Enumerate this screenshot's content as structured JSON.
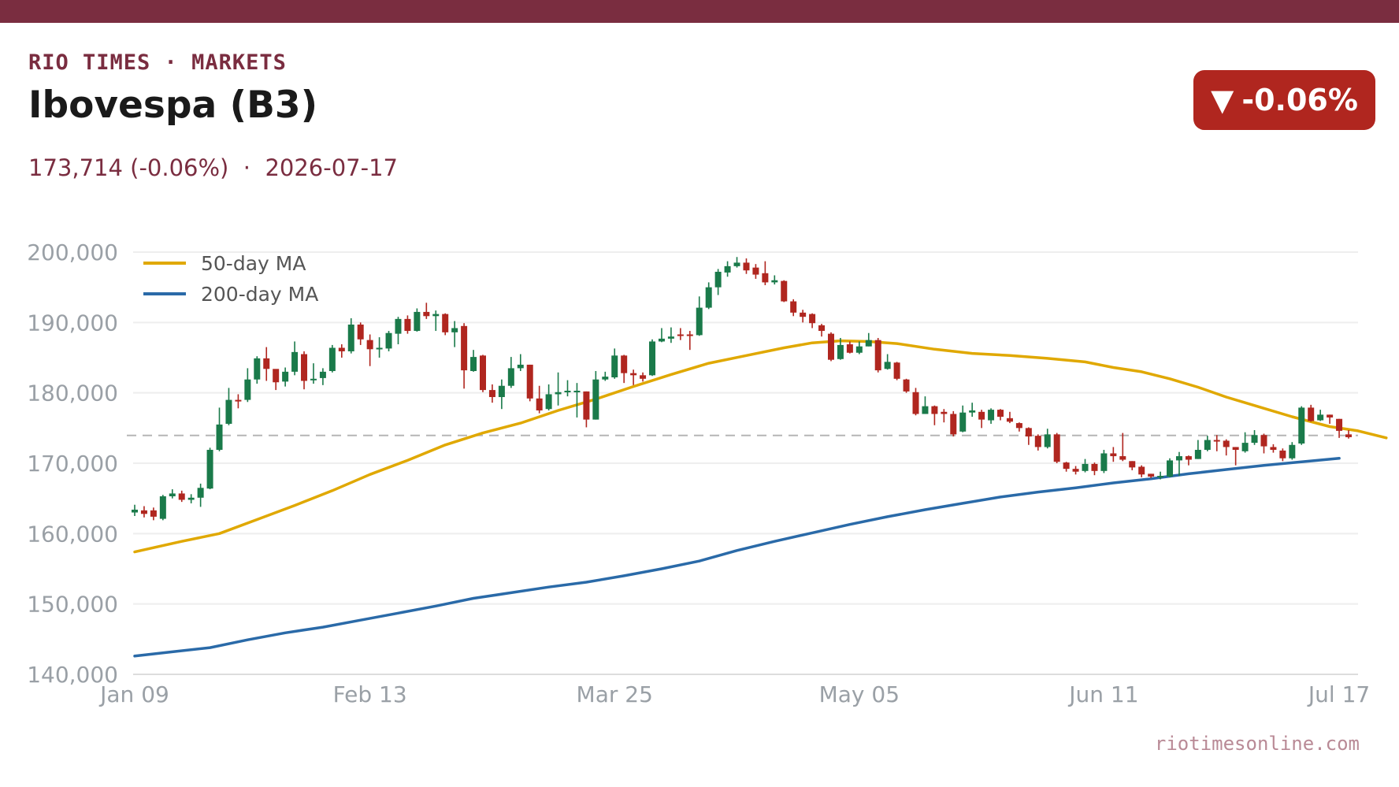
{
  "brand": "RIO TIMES · MARKETS",
  "title": "Ibovespa (B3)",
  "subtitle": {
    "price": "173,714 (-0.06%)",
    "separator": "  ·  ",
    "date": "2026-07-17"
  },
  "badge": {
    "arrow": "▼",
    "text": "-0.06%",
    "color": "#b0261f"
  },
  "footer": "riotimesonline.com",
  "colors": {
    "accent": "#7a2d40",
    "up": "#1a7a4a",
    "down": "#b0261f",
    "ma50": "#e0a800",
    "ma200": "#2a6aa8",
    "reference": "#b5b5b5"
  },
  "chart_data": {
    "type": "candlestick",
    "ylim": [
      140000,
      200000
    ],
    "yticks": [
      200000,
      190000,
      180000,
      170000,
      160000,
      150000,
      140000
    ],
    "ytick_labels": [
      "200,000",
      "190,000",
      "180,000",
      "170,000",
      "160,000",
      "150,000",
      "140,000"
    ],
    "xticks": [
      0,
      25,
      51,
      77,
      103,
      128
    ],
    "xtick_labels": [
      "Jan 09",
      "Feb 13",
      "Mar 25",
      "May 05",
      "Jun 11",
      "Jul 17"
    ],
    "reference_line": 173950,
    "grid": true,
    "legend_position": "top-left",
    "legend": [
      {
        "name": "50-day MA",
        "color": "#e0a800"
      },
      {
        "name": "200-day MA",
        "color": "#2a6aa8"
      }
    ],
    "candles": [
      [
        163000,
        163400,
        164100,
        162500
      ],
      [
        163300,
        162800,
        163900,
        162300
      ],
      [
        163300,
        162400,
        163700,
        161900
      ],
      [
        162100,
        165300,
        165500,
        161900
      ],
      [
        165300,
        165700,
        166300,
        165000
      ],
      [
        165700,
        164800,
        166100,
        164500
      ],
      [
        164800,
        165100,
        165600,
        164300
      ],
      [
        165100,
        166500,
        167100,
        163800
      ],
      [
        166400,
        171900,
        172200,
        166300
      ],
      [
        171900,
        175500,
        177900,
        171700
      ],
      [
        175600,
        179000,
        180700,
        175400
      ],
      [
        179000,
        178800,
        179800,
        177800
      ],
      [
        179000,
        181900,
        183500,
        178700
      ],
      [
        181900,
        184900,
        185200,
        181300
      ],
      [
        184900,
        183400,
        186500,
        181700
      ],
      [
        183400,
        181500,
        182800,
        180400
      ],
      [
        181600,
        183000,
        183600,
        180900
      ],
      [
        183000,
        185800,
        187300,
        182500
      ],
      [
        185500,
        181700,
        185900,
        180500
      ],
      [
        181800,
        182000,
        184200,
        181300
      ],
      [
        182100,
        183000,
        183500,
        181100
      ],
      [
        183100,
        186400,
        186800,
        182900
      ],
      [
        186400,
        185900,
        186900,
        185000
      ],
      [
        185900,
        189700,
        190600,
        185600
      ],
      [
        189700,
        187600,
        190000,
        186800
      ],
      [
        187500,
        186200,
        188300,
        183800
      ],
      [
        186200,
        186400,
        187900,
        185000
      ],
      [
        186300,
        188500,
        188800,
        185900
      ],
      [
        188400,
        190500,
        190800,
        186900
      ],
      [
        190500,
        188800,
        191000,
        188400
      ],
      [
        188800,
        191500,
        192000,
        188700
      ],
      [
        191500,
        190900,
        192800,
        190500
      ],
      [
        190900,
        191200,
        191700,
        188800
      ],
      [
        191200,
        188600,
        191300,
        188200
      ],
      [
        188600,
        189200,
        190200,
        186500
      ],
      [
        189500,
        183200,
        189900,
        180600
      ],
      [
        183100,
        185100,
        186100,
        183000
      ],
      [
        185300,
        180400,
        185400,
        180100
      ],
      [
        180400,
        179400,
        181200,
        178600
      ],
      [
        179400,
        181000,
        181900,
        177700
      ],
      [
        181000,
        183500,
        185100,
        180700
      ],
      [
        183500,
        184000,
        185500,
        183100
      ],
      [
        184000,
        179200,
        184000,
        178800
      ],
      [
        179200,
        177500,
        181000,
        177100
      ],
      [
        177700,
        179800,
        181200,
        177500
      ],
      [
        179800,
        180100,
        182900,
        178200
      ],
      [
        180200,
        180300,
        181800,
        179500
      ],
      [
        180200,
        180300,
        181400,
        176500
      ],
      [
        180200,
        176200,
        180200,
        175100
      ],
      [
        176200,
        181900,
        183100,
        176200
      ],
      [
        181900,
        182300,
        183000,
        181700
      ],
      [
        182200,
        185300,
        186300,
        182000
      ],
      [
        185300,
        182800,
        185400,
        181400
      ],
      [
        182800,
        182500,
        183300,
        181100
      ],
      [
        182500,
        182000,
        182900,
        181600
      ],
      [
        182500,
        187300,
        187600,
        182400
      ],
      [
        187300,
        187700,
        189200,
        187200
      ],
      [
        187700,
        188000,
        189300,
        187100
      ],
      [
        188300,
        188100,
        189200,
        187500
      ],
      [
        188300,
        188200,
        188800,
        186100
      ],
      [
        188200,
        192100,
        193700,
        188100
      ],
      [
        192100,
        195000,
        195700,
        191900
      ],
      [
        195000,
        197200,
        197600,
        193900
      ],
      [
        197100,
        198000,
        198700,
        196500
      ],
      [
        198000,
        198500,
        199300,
        197800
      ],
      [
        198500,
        197400,
        199100,
        196900
      ],
      [
        197800,
        196800,
        198300,
        196200
      ],
      [
        197000,
        195700,
        198700,
        195300
      ],
      [
        195700,
        196000,
        196700,
        195400
      ],
      [
        195900,
        193000,
        196000,
        192900
      ],
      [
        193000,
        191400,
        193300,
        190900
      ],
      [
        191400,
        190800,
        191800,
        190000
      ],
      [
        191200,
        189900,
        191300,
        189200
      ],
      [
        189600,
        188800,
        189800,
        188000
      ],
      [
        188400,
        184700,
        188600,
        184500
      ],
      [
        184800,
        186800,
        187800,
        184700
      ],
      [
        186900,
        185700,
        187300,
        185600
      ],
      [
        185700,
        186600,
        187300,
        185500
      ],
      [
        186600,
        187500,
        188500,
        186600
      ],
      [
        187500,
        183200,
        187800,
        182900
      ],
      [
        183400,
        184400,
        185500,
        183300
      ],
      [
        184300,
        182000,
        184400,
        181800
      ],
      [
        181900,
        180200,
        182000,
        180000
      ],
      [
        180100,
        177000,
        180700,
        176800
      ],
      [
        177000,
        178100,
        179500,
        177000
      ],
      [
        178100,
        177000,
        178200,
        175400
      ],
      [
        177300,
        177000,
        177700,
        175800
      ],
      [
        177000,
        174100,
        177400,
        173800
      ],
      [
        174500,
        177200,
        178200,
        174400
      ],
      [
        177200,
        177500,
        178600,
        176600
      ],
      [
        177300,
        176200,
        177600,
        175000
      ],
      [
        176100,
        177600,
        177800,
        175600
      ],
      [
        177600,
        176600,
        177700,
        176100
      ],
      [
        176400,
        175900,
        177300,
        175700
      ],
      [
        175700,
        175000,
        175800,
        174500
      ],
      [
        175000,
        173800,
        175100,
        172600
      ],
      [
        173900,
        172300,
        174100,
        171800
      ],
      [
        172300,
        174100,
        174900,
        172100
      ],
      [
        174100,
        170200,
        174300,
        170000
      ],
      [
        170100,
        169200,
        170200,
        168800
      ],
      [
        169200,
        168800,
        169600,
        168400
      ],
      [
        168900,
        169900,
        170600,
        168700
      ],
      [
        169900,
        168900,
        170100,
        168300
      ],
      [
        168900,
        171400,
        171900,
        168600
      ],
      [
        171400,
        171000,
        172300,
        170200
      ],
      [
        171000,
        170500,
        174300,
        170300
      ],
      [
        170300,
        169400,
        170300,
        169000
      ],
      [
        169500,
        168400,
        169700,
        168000
      ],
      [
        168500,
        168100,
        168500,
        167900
      ],
      [
        168200,
        168200,
        168800,
        167700
      ],
      [
        168100,
        170400,
        170700,
        168000
      ],
      [
        170400,
        171000,
        171600,
        168200
      ],
      [
        171000,
        170500,
        171100,
        169700
      ],
      [
        170600,
        171900,
        173300,
        170600
      ],
      [
        171900,
        173300,
        173900,
        171700
      ],
      [
        173300,
        173100,
        174000,
        171700
      ],
      [
        173200,
        172300,
        173400,
        171100
      ],
      [
        172300,
        171900,
        172300,
        169700
      ],
      [
        171700,
        172900,
        174400,
        171500
      ],
      [
        172900,
        174000,
        174700,
        172600
      ],
      [
        174000,
        172400,
        174200,
        171400
      ],
      [
        172300,
        171900,
        172700,
        171500
      ],
      [
        171800,
        170700,
        172100,
        170300
      ],
      [
        170700,
        172600,
        173000,
        170500
      ],
      [
        172800,
        177900,
        178100,
        172600
      ],
      [
        177900,
        176000,
        178300,
        175900
      ],
      [
        176100,
        176900,
        177600,
        176000
      ],
      [
        176900,
        176500,
        176900,
        175600
      ],
      [
        176300,
        174600,
        176300,
        173600
      ],
      [
        174100,
        173700,
        174700,
        173500
      ]
    ],
    "ma50": [
      [
        0,
        157400
      ],
      [
        5,
        158900
      ],
      [
        9,
        160000
      ],
      [
        13,
        162000
      ],
      [
        17,
        164000
      ],
      [
        21,
        166100
      ],
      [
        25,
        168400
      ],
      [
        29,
        170400
      ],
      [
        33,
        172600
      ],
      [
        37,
        174300
      ],
      [
        41,
        175700
      ],
      [
        45,
        177500
      ],
      [
        49,
        179100
      ],
      [
        53,
        180900
      ],
      [
        57,
        182600
      ],
      [
        61,
        184200
      ],
      [
        65,
        185300
      ],
      [
        69,
        186400
      ],
      [
        72,
        187100
      ],
      [
        75,
        187400
      ],
      [
        78,
        187300
      ],
      [
        81,
        187000
      ],
      [
        85,
        186200
      ],
      [
        89,
        185600
      ],
      [
        93,
        185300
      ],
      [
        97,
        184900
      ],
      [
        101,
        184400
      ],
      [
        104,
        183600
      ],
      [
        107,
        183000
      ],
      [
        110,
        182000
      ],
      [
        113,
        180800
      ],
      [
        116,
        179400
      ],
      [
        120,
        177800
      ],
      [
        123,
        176600
      ],
      [
        127,
        175200
      ],
      [
        130,
        174600
      ],
      [
        133,
        173600
      ]
    ],
    "ma200": [
      [
        0,
        142600
      ],
      [
        4,
        143200
      ],
      [
        8,
        143800
      ],
      [
        12,
        144900
      ],
      [
        16,
        145900
      ],
      [
        20,
        146700
      ],
      [
        24,
        147700
      ],
      [
        28,
        148700
      ],
      [
        32,
        149700
      ],
      [
        36,
        150800
      ],
      [
        40,
        151600
      ],
      [
        44,
        152400
      ],
      [
        48,
        153100
      ],
      [
        52,
        154000
      ],
      [
        56,
        155000
      ],
      [
        60,
        156100
      ],
      [
        64,
        157600
      ],
      [
        68,
        158900
      ],
      [
        72,
        160100
      ],
      [
        76,
        161300
      ],
      [
        80,
        162400
      ],
      [
        84,
        163400
      ],
      [
        88,
        164300
      ],
      [
        92,
        165200
      ],
      [
        96,
        165900
      ],
      [
        100,
        166500
      ],
      [
        104,
        167200
      ],
      [
        108,
        167800
      ],
      [
        112,
        168500
      ],
      [
        116,
        169100
      ],
      [
        120,
        169700
      ],
      [
        124,
        170200
      ],
      [
        128,
        170700
      ]
    ]
  }
}
